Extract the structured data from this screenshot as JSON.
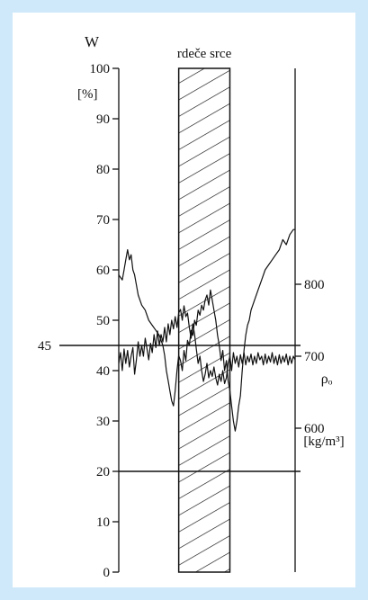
{
  "chart_data": {
    "type": "line",
    "title": "rdeče srce",
    "left_axis": {
      "label": "W",
      "unit": "[%]",
      "ylim": [
        0,
        100
      ],
      "ticks": [
        0,
        10,
        20,
        30,
        40,
        50,
        60,
        70,
        80,
        90,
        100
      ]
    },
    "right_axis": {
      "label": "ρₒ",
      "unit": "[kg/m³]",
      "ticks": [
        600,
        700,
        800
      ],
      "range": [
        400,
        1100
      ]
    },
    "reference_lines": [
      {
        "label": "45",
        "value": 45
      },
      {
        "value": 20
      }
    ],
    "region": {
      "label": "rdeče srce",
      "x_range": [
        0.34,
        0.63
      ]
    },
    "x_range": [
      0,
      1
    ],
    "series": [
      {
        "axis": "left",
        "points": [
          [
            0.0,
            59
          ],
          [
            0.02,
            58
          ],
          [
            0.03,
            60
          ],
          [
            0.04,
            62
          ],
          [
            0.05,
            64
          ],
          [
            0.06,
            62
          ],
          [
            0.07,
            63
          ],
          [
            0.08,
            60
          ],
          [
            0.09,
            59
          ],
          [
            0.1,
            57
          ],
          [
            0.11,
            55
          ],
          [
            0.13,
            53
          ],
          [
            0.15,
            52
          ],
          [
            0.17,
            50
          ],
          [
            0.19,
            49
          ],
          [
            0.21,
            48
          ],
          [
            0.23,
            47
          ],
          [
            0.25,
            45
          ],
          [
            0.26,
            43
          ],
          [
            0.27,
            40
          ],
          [
            0.28,
            38
          ],
          [
            0.29,
            36
          ],
          [
            0.3,
            34
          ],
          [
            0.31,
            33
          ],
          [
            0.32,
            36
          ],
          [
            0.33,
            40
          ],
          [
            0.34,
            43
          ],
          [
            0.35,
            42
          ],
          [
            0.36,
            40
          ],
          [
            0.37,
            44
          ],
          [
            0.38,
            42
          ],
          [
            0.39,
            46
          ],
          [
            0.4,
            45
          ],
          [
            0.41,
            48
          ],
          [
            0.42,
            47
          ],
          [
            0.43,
            50
          ],
          [
            0.44,
            49
          ],
          [
            0.45,
            52
          ],
          [
            0.46,
            51
          ],
          [
            0.47,
            53
          ],
          [
            0.48,
            52
          ],
          [
            0.49,
            54
          ],
          [
            0.5,
            55
          ],
          [
            0.51,
            53
          ],
          [
            0.52,
            56
          ],
          [
            0.53,
            54
          ],
          [
            0.54,
            52
          ],
          [
            0.55,
            50
          ],
          [
            0.56,
            47
          ],
          [
            0.57,
            45
          ],
          [
            0.58,
            42
          ],
          [
            0.59,
            44
          ],
          [
            0.6,
            40
          ],
          [
            0.61,
            42
          ],
          [
            0.62,
            38
          ],
          [
            0.63,
            36
          ],
          [
            0.64,
            33
          ],
          [
            0.65,
            30
          ],
          [
            0.66,
            28
          ],
          [
            0.67,
            30
          ],
          [
            0.68,
            33
          ],
          [
            0.69,
            35
          ],
          [
            0.7,
            40
          ],
          [
            0.71,
            44
          ],
          [
            0.72,
            47
          ],
          [
            0.73,
            49
          ],
          [
            0.74,
            50
          ],
          [
            0.75,
            52
          ],
          [
            0.77,
            54
          ],
          [
            0.79,
            56
          ],
          [
            0.81,
            58
          ],
          [
            0.83,
            60
          ],
          [
            0.85,
            61
          ],
          [
            0.87,
            62
          ],
          [
            0.89,
            63
          ],
          [
            0.91,
            64
          ],
          [
            0.93,
            66
          ],
          [
            0.95,
            65
          ],
          [
            0.97,
            67
          ],
          [
            0.99,
            68
          ],
          [
            1.0,
            68
          ]
        ]
      },
      {
        "axis": "right",
        "points": [
          [
            0.0,
            690
          ],
          [
            0.01,
            705
          ],
          [
            0.02,
            680
          ],
          [
            0.03,
            710
          ],
          [
            0.04,
            690
          ],
          [
            0.05,
            708
          ],
          [
            0.06,
            685
          ],
          [
            0.07,
            700
          ],
          [
            0.08,
            712
          ],
          [
            0.09,
            675
          ],
          [
            0.1,
            695
          ],
          [
            0.11,
            720
          ],
          [
            0.12,
            700
          ],
          [
            0.13,
            715
          ],
          [
            0.14,
            700
          ],
          [
            0.15,
            725
          ],
          [
            0.16,
            710
          ],
          [
            0.17,
            695
          ],
          [
            0.18,
            718
          ],
          [
            0.19,
            705
          ],
          [
            0.2,
            730
          ],
          [
            0.21,
            712
          ],
          [
            0.22,
            735
          ],
          [
            0.23,
            715
          ],
          [
            0.24,
            730
          ],
          [
            0.25,
            720
          ],
          [
            0.26,
            740
          ],
          [
            0.27,
            720
          ],
          [
            0.28,
            745
          ],
          [
            0.29,
            730
          ],
          [
            0.3,
            750
          ],
          [
            0.31,
            738
          ],
          [
            0.32,
            755
          ],
          [
            0.33,
            740
          ],
          [
            0.34,
            760
          ],
          [
            0.35,
            765
          ],
          [
            0.36,
            750
          ],
          [
            0.37,
            770
          ],
          [
            0.38,
            755
          ],
          [
            0.39,
            760
          ],
          [
            0.4,
            740
          ],
          [
            0.41,
            725
          ],
          [
            0.42,
            745
          ],
          [
            0.43,
            730
          ],
          [
            0.44,
            710
          ],
          [
            0.45,
            690
          ],
          [
            0.46,
            700
          ],
          [
            0.47,
            680
          ],
          [
            0.48,
            665
          ],
          [
            0.49,
            675
          ],
          [
            0.5,
            690
          ],
          [
            0.51,
            670
          ],
          [
            0.52,
            680
          ],
          [
            0.53,
            672
          ],
          [
            0.54,
            685
          ],
          [
            0.55,
            670
          ],
          [
            0.56,
            660
          ],
          [
            0.57,
            675
          ],
          [
            0.58,
            665
          ],
          [
            0.59,
            680
          ],
          [
            0.6,
            662
          ],
          [
            0.61,
            670
          ],
          [
            0.62,
            690
          ],
          [
            0.63,
            700
          ],
          [
            0.64,
            680
          ],
          [
            0.65,
            705
          ],
          [
            0.66,
            690
          ],
          [
            0.67,
            700
          ],
          [
            0.68,
            685
          ],
          [
            0.69,
            702
          ],
          [
            0.7,
            690
          ],
          [
            0.71,
            705
          ],
          [
            0.72,
            688
          ],
          [
            0.73,
            700
          ],
          [
            0.74,
            692
          ],
          [
            0.75,
            703
          ],
          [
            0.76,
            688
          ],
          [
            0.77,
            700
          ],
          [
            0.78,
            690
          ],
          [
            0.79,
            705
          ],
          [
            0.8,
            695
          ],
          [
            0.81,
            700
          ],
          [
            0.82,
            688
          ],
          [
            0.83,
            703
          ],
          [
            0.84,
            690
          ],
          [
            0.85,
            700
          ],
          [
            0.86,
            692
          ],
          [
            0.87,
            705
          ],
          [
            0.88,
            690
          ],
          [
            0.89,
            700
          ],
          [
            0.9,
            688
          ],
          [
            0.91,
            702
          ],
          [
            0.92,
            690
          ],
          [
            0.93,
            700
          ],
          [
            0.94,
            692
          ],
          [
            0.95,
            703
          ],
          [
            0.96,
            688
          ],
          [
            0.97,
            700
          ],
          [
            0.98,
            690
          ],
          [
            0.99,
            700
          ],
          [
            1.0,
            695
          ]
        ]
      }
    ],
    "grid": false,
    "legend": "none"
  }
}
